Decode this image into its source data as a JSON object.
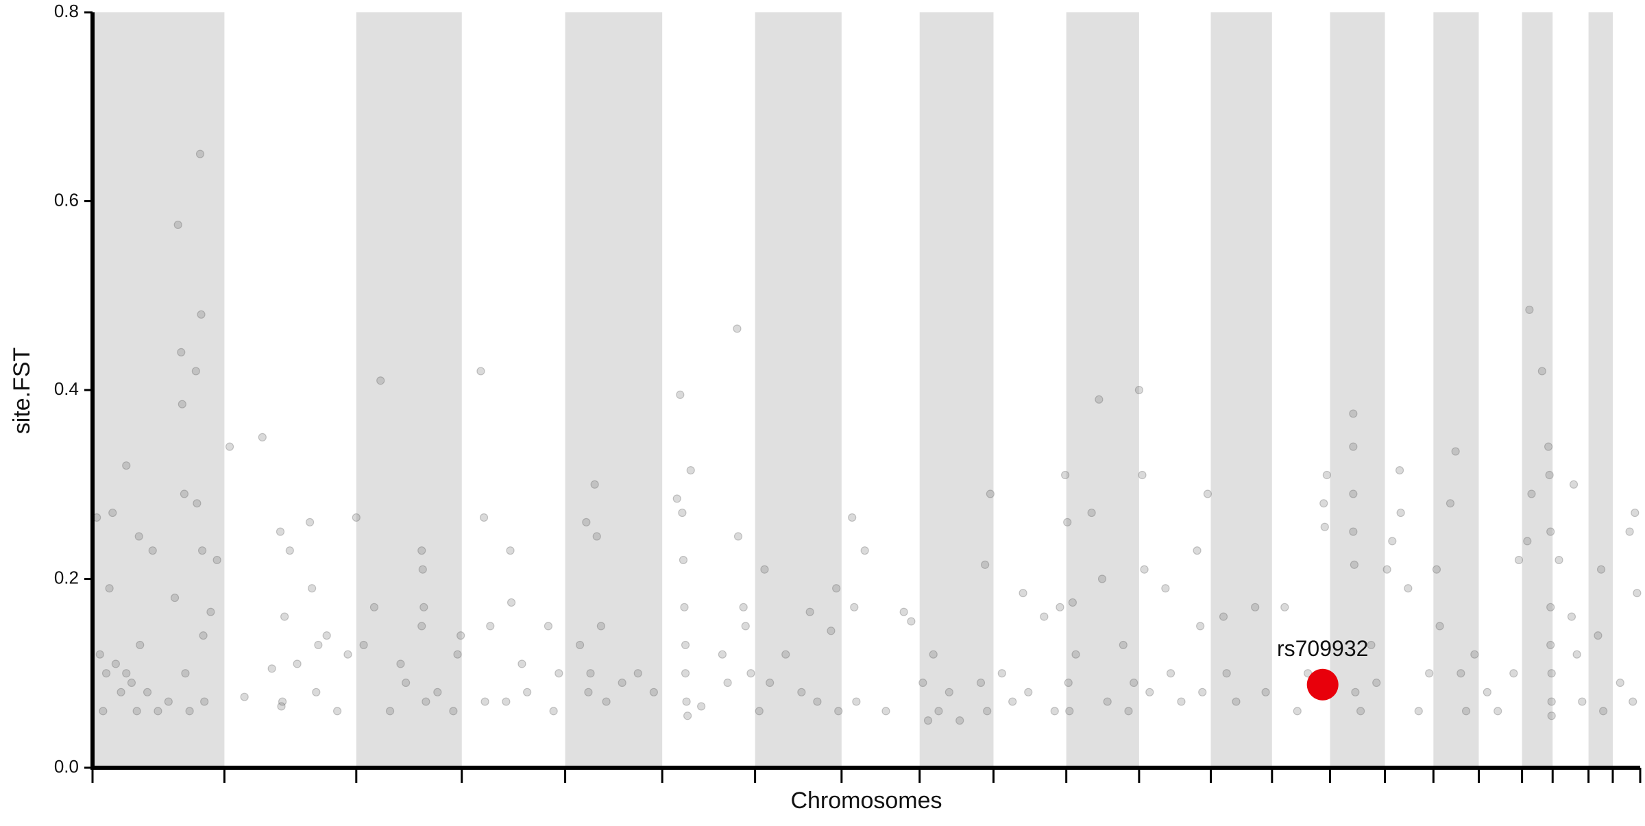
{
  "chart_data": {
    "type": "scatter",
    "xlabel": "Chromosomes",
    "ylabel": "site.FST",
    "xlim": [
      0,
      1467
    ],
    "ylim": [
      0,
      0.8
    ],
    "yticks": [
      {
        "value": 0,
        "label": "0.0"
      },
      0.2,
      0.4,
      0.6,
      0.8
    ],
    "chromosome_boundaries": [
      0,
      125,
      250,
      350,
      448,
      540,
      628,
      710,
      784,
      854,
      923,
      992,
      1060,
      1118,
      1173,
      1225,
      1271,
      1314,
      1355,
      1384,
      1418,
      1441,
      1467
    ],
    "band_color": "#e0e0e0",
    "color": "#555555",
    "x": [
      4,
      7,
      10,
      16,
      19,
      22,
      27,
      32,
      37,
      42,
      44,
      52,
      57,
      72,
      78,
      81,
      84,
      85,
      87,
      88,
      92,
      98,
      99,
      102,
      103,
      104,
      105,
      106,
      112,
      118,
      62,
      45,
      32,
      13,
      130,
      144,
      161,
      170,
      178,
      180,
      182,
      187,
      194,
      206,
      208,
      212,
      222,
      232,
      242,
      214,
      179,
      250,
      257,
      267,
      273,
      282,
      292,
      297,
      312,
      313,
      314,
      312,
      316,
      327,
      342,
      346,
      349,
      368,
      371,
      372,
      377,
      392,
      396,
      397,
      407,
      412,
      432,
      437,
      442,
      462,
      468,
      470,
      476,
      478,
      482,
      472,
      487,
      502,
      517,
      532,
      554,
      557,
      559,
      560,
      561,
      562,
      562,
      563,
      564,
      567,
      577,
      597,
      602,
      611,
      612,
      617,
      619,
      624,
      632,
      637,
      642,
      657,
      672,
      680,
      687,
      700,
      707,
      705,
      720,
      722,
      724,
      732,
      752,
      769,
      776,
      787,
      792,
      797,
      802,
      812,
      822,
      842,
      846,
      848,
      851,
      862,
      872,
      882,
      887,
      902,
      912,
      917,
      922,
      924,
      925,
      926,
      929,
      932,
      947,
      954,
      957,
      962,
      977,
      982,
      987,
      992,
      995,
      997,
      1002,
      1017,
      1022,
      1032,
      1047,
      1050,
      1052,
      1057,
      1072,
      1075,
      1084,
      1102,
      1112,
      1130,
      1142,
      1167,
      1168,
      1170,
      1152,
      1195,
      1195,
      1195,
      1195,
      1196,
      1197,
      1202,
      1212,
      1217,
      1227,
      1232,
      1239,
      1240,
      1247,
      1257,
      1267,
      1274,
      1277,
      1287,
      1292,
      1297,
      1302,
      1310,
      1322,
      1332,
      1347,
      1352,
      1360,
      1362,
      1364,
      1374,
      1380,
      1381,
      1382,
      1382,
      1382,
      1383,
      1383,
      1383,
      1390,
      1402,
      1404,
      1412,
      1407,
      1430,
      1432,
      1427,
      1448,
      1457,
      1462,
      1464,
      1460
    ],
    "values": [
      0.265,
      0.12,
      0.06,
      0.19,
      0.27,
      0.11,
      0.08,
      0.32,
      0.09,
      0.06,
      0.245,
      0.08,
      0.23,
      0.07,
      0.18,
      0.575,
      0.44,
      0.385,
      0.29,
      0.1,
      0.06,
      0.42,
      0.28,
      0.65,
      0.48,
      0.23,
      0.14,
      0.07,
      0.165,
      0.22,
      0.06,
      0.13,
      0.1,
      0.1,
      0.34,
      0.075,
      0.35,
      0.105,
      0.25,
      0.07,
      0.16,
      0.23,
      0.11,
      0.26,
      0.19,
      0.08,
      0.14,
      0.06,
      0.12,
      0.13,
      0.065,
      0.265,
      0.13,
      0.17,
      0.41,
      0.06,
      0.11,
      0.09,
      0.23,
      0.21,
      0.17,
      0.15,
      0.07,
      0.08,
      0.06,
      0.12,
      0.14,
      0.42,
      0.265,
      0.07,
      0.15,
      0.07,
      0.23,
      0.175,
      0.11,
      0.08,
      0.15,
      0.06,
      0.1,
      0.13,
      0.26,
      0.08,
      0.3,
      0.245,
      0.15,
      0.1,
      0.07,
      0.09,
      0.1,
      0.08,
      0.285,
      0.395,
      0.27,
      0.22,
      0.17,
      0.13,
      0.1,
      0.07,
      0.055,
      0.315,
      0.065,
      0.12,
      0.09,
      0.465,
      0.245,
      0.17,
      0.15,
      0.1,
      0.06,
      0.21,
      0.09,
      0.12,
      0.08,
      0.165,
      0.07,
      0.145,
      0.06,
      0.19,
      0.265,
      0.17,
      0.07,
      0.23,
      0.06,
      0.165,
      0.155,
      0.09,
      0.05,
      0.12,
      0.06,
      0.08,
      0.05,
      0.09,
      0.215,
      0.06,
      0.29,
      0.1,
      0.07,
      0.185,
      0.08,
      0.16,
      0.06,
      0.17,
      0.31,
      0.26,
      0.09,
      0.06,
      0.175,
      0.12,
      0.27,
      0.39,
      0.2,
      0.07,
      0.13,
      0.06,
      0.09,
      0.4,
      0.31,
      0.21,
      0.08,
      0.19,
      0.1,
      0.07,
      0.23,
      0.15,
      0.08,
      0.29,
      0.16,
      0.1,
      0.07,
      0.17,
      0.08,
      0.17,
      0.06,
      0.28,
      0.255,
      0.31,
      0.1,
      0.375,
      0.34,
      0.29,
      0.25,
      0.215,
      0.08,
      0.06,
      0.13,
      0.09,
      0.21,
      0.24,
      0.315,
      0.27,
      0.19,
      0.06,
      0.1,
      0.21,
      0.15,
      0.28,
      0.335,
      0.1,
      0.06,
      0.12,
      0.08,
      0.06,
      0.1,
      0.22,
      0.24,
      0.485,
      0.29,
      0.42,
      0.34,
      0.31,
      0.25,
      0.17,
      0.13,
      0.1,
      0.07,
      0.055,
      0.22,
      0.16,
      0.3,
      0.07,
      0.12,
      0.21,
      0.06,
      0.14,
      0.09,
      0.25,
      0.27,
      0.185,
      0.07
    ],
    "highlight": {
      "label": "rs709932",
      "x": 1166,
      "y": 0.088,
      "color": "#e8000b"
    }
  }
}
